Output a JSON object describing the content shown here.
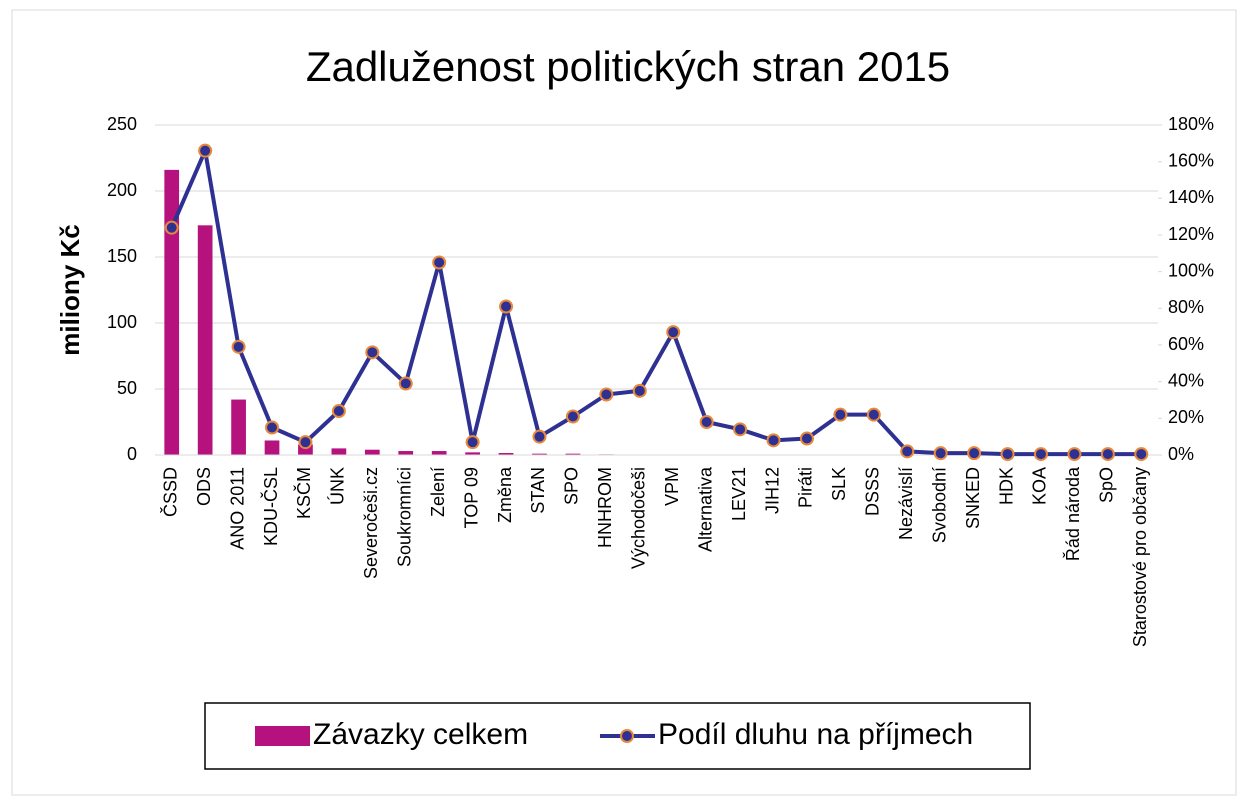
{
  "chart_data": {
    "type": "bar",
    "title": "Zadluženost politických stran 2015",
    "ylabel": "miliony Kč",
    "categories": [
      "ČSSD",
      "ODS",
      "ANO 2011",
      "KDU-ČSL",
      "KSČM",
      "ÚNK",
      "Severočeši.cz",
      "Soukromníci",
      "Zelení",
      "TOP 09",
      "Změna",
      "STAN",
      "SPO",
      "HNHROM",
      "Východočeši",
      "VPM",
      "Alternativa",
      "LEV21",
      "JIH12",
      "Piráti",
      "SLK",
      "DSSS",
      "Nezávislí",
      "Svobodní",
      "SNKED",
      "HDK",
      "KOA",
      "Řád národa",
      "SpO",
      "Starostové pro občany"
    ],
    "series": [
      {
        "name": "Závazky celkem",
        "type": "bar",
        "color": "#b5127d",
        "values": [
          216,
          174,
          42,
          11,
          8,
          5,
          4,
          3,
          3,
          2,
          1.5,
          1,
          1,
          0.5,
          0.3,
          0.2,
          0.2,
          0.1,
          0.1,
          0.1,
          0.1,
          0.1,
          0.1,
          0.1,
          0.1,
          0.1,
          0.1,
          0.1,
          0.1,
          0.1
        ]
      },
      {
        "name": "Podíl dluhu na příjmech",
        "type": "line",
        "axis": "y2",
        "color": "#2e3192",
        "marker_edge_color": "#e8883a",
        "values": [
          124,
          166,
          59,
          15,
          7,
          24,
          56,
          39,
          105,
          7,
          81,
          10,
          21,
          33,
          35,
          67,
          18,
          14,
          8,
          9,
          22,
          22,
          2,
          1,
          1,
          0.5,
          0.5,
          0.5,
          0.5,
          0.5
        ]
      }
    ],
    "ylim": [
      0,
      250
    ],
    "yticks": [
      0,
      50,
      100,
      150,
      200,
      250
    ],
    "y2lim": [
      0,
      180
    ],
    "y2ticks": [
      {
        "value": 0,
        "label": "0%"
      },
      {
        "value": 20,
        "label": "20%"
      },
      {
        "value": 40,
        "label": "40%"
      },
      {
        "value": 60,
        "label": "60%"
      },
      {
        "value": 80,
        "label": "80%"
      },
      {
        "value": 100,
        "label": "100%"
      },
      {
        "value": 120,
        "label": "120%"
      },
      {
        "value": 140,
        "label": "140%"
      },
      {
        "value": 160,
        "label": "160%"
      },
      {
        "value": 180,
        "label": "180%"
      }
    ],
    "grid": true,
    "legend": "bottom"
  }
}
